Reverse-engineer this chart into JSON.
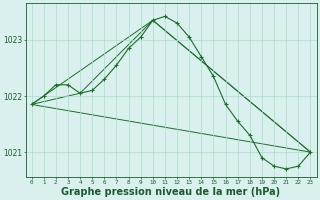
{
  "background_color": "#daf0ee",
  "grid_color": "#aaddcc",
  "line_color": "#1a6e28",
  "marker_color": "#1a6e28",
  "xlabel": "Graphe pression niveau de la mer (hPa)",
  "xlabel_fontsize": 7.0,
  "xlabel_color": "#1a5c2a",
  "tick_color": "#1a5c2a",
  "ylim": [
    1020.55,
    1023.65
  ],
  "xlim": [
    -0.5,
    23.5
  ],
  "yticks": [
    1021,
    1022,
    1023
  ],
  "xticks": [
    0,
    1,
    2,
    3,
    4,
    5,
    6,
    7,
    8,
    9,
    10,
    11,
    12,
    13,
    14,
    15,
    16,
    17,
    18,
    19,
    20,
    21,
    22,
    23
  ],
  "series1": {
    "x": [
      0,
      1,
      2,
      3,
      4,
      5,
      6,
      7,
      8,
      9,
      10,
      11,
      12,
      13,
      14,
      15,
      16,
      17,
      18,
      19,
      20,
      21,
      22,
      23
    ],
    "y": [
      1021.85,
      1022.0,
      1022.2,
      1022.2,
      1022.05,
      1022.1,
      1022.3,
      1022.55,
      1022.85,
      1023.05,
      1023.35,
      1023.42,
      1023.3,
      1023.05,
      1022.7,
      1022.35,
      1021.85,
      1021.55,
      1021.3,
      1020.9,
      1020.75,
      1020.7,
      1020.75,
      1021.0
    ]
  },
  "series2": {
    "x": [
      0,
      4,
      10,
      23
    ],
    "y": [
      1021.85,
      1022.05,
      1023.35,
      1021.0
    ]
  },
  "series3": {
    "x": [
      0,
      10,
      23
    ],
    "y": [
      1021.85,
      1023.35,
      1021.0
    ]
  },
  "series4": {
    "x": [
      0,
      23
    ],
    "y": [
      1021.85,
      1021.0
    ]
  }
}
